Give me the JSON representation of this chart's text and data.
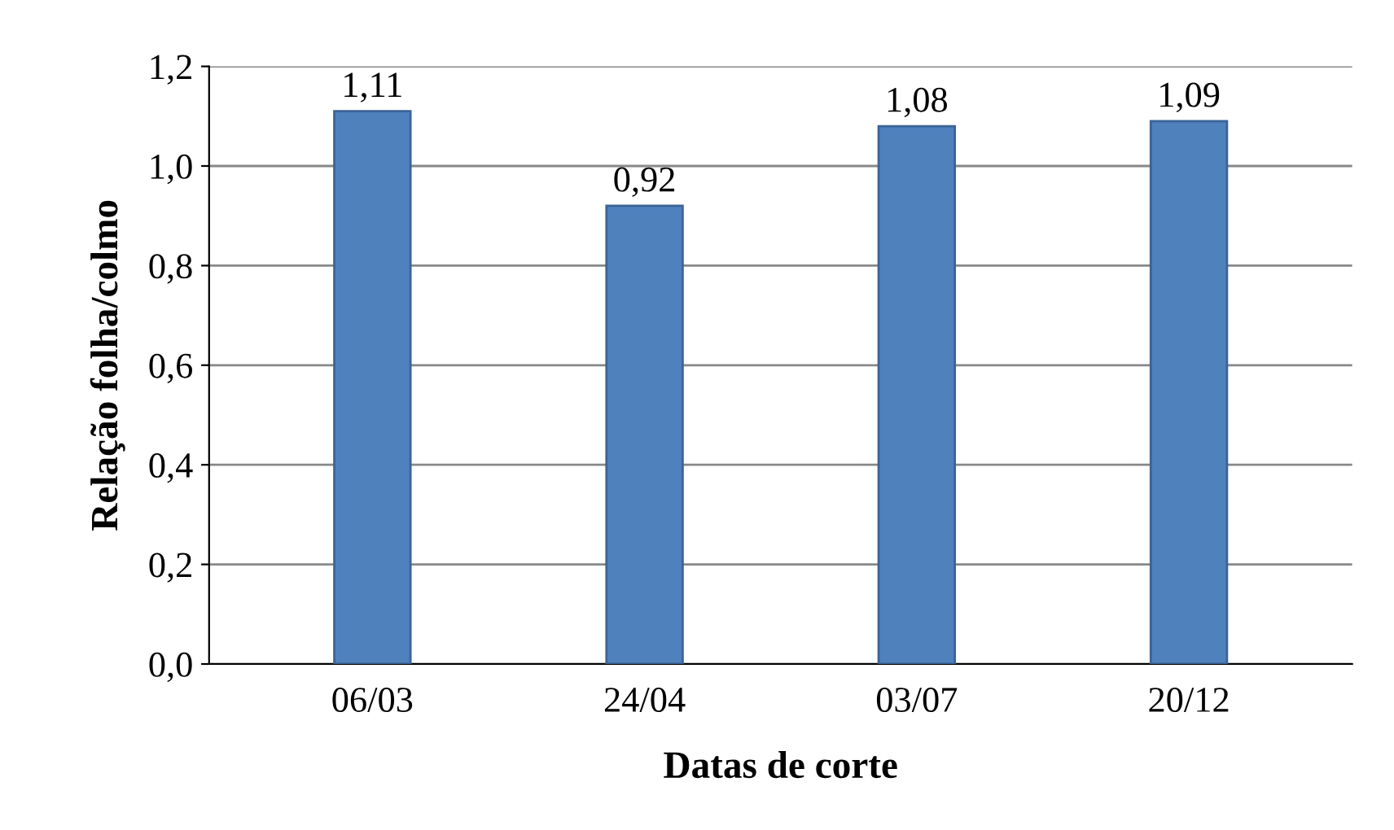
{
  "chart_data": {
    "type": "bar",
    "categories": [
      "06/03",
      "24/04",
      "03/07",
      "20/12"
    ],
    "values": [
      1.11,
      0.92,
      1.08,
      1.09
    ],
    "value_labels": [
      "1,11",
      "0,92",
      "1,08",
      "1,09"
    ],
    "color": "#4f81bd",
    "xlabel": "Datas de corte",
    "ylabel": "Relação folha/colmo",
    "ylim": [
      0,
      1.2
    ],
    "yticks": [
      {
        "value": 0,
        "label": "0,0"
      },
      {
        "value": 0.2,
        "label": "0,2"
      },
      {
        "value": 0.4,
        "label": "0,4"
      },
      {
        "value": 0.6,
        "label": "0,6"
      },
      {
        "value": 0.8,
        "label": "0,8"
      },
      {
        "value": 1.0,
        "label": "1,0"
      },
      {
        "value": 1.2,
        "label": "1,2"
      }
    ],
    "grid": "y"
  }
}
